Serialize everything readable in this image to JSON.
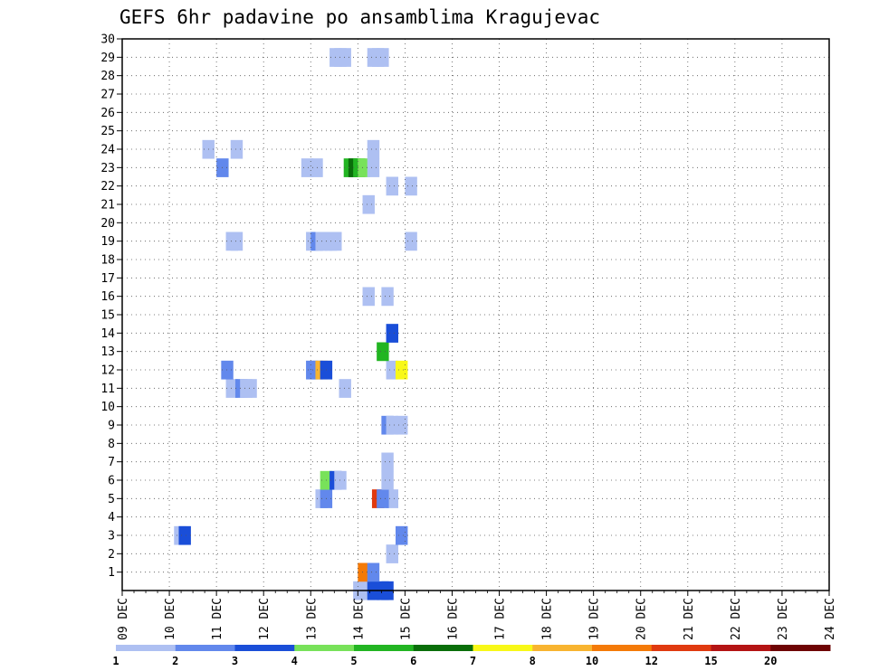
{
  "chart_data": {
    "type": "heatmap",
    "title": "GEFS 6hr padavine po ansamblima Kragujevac",
    "x_tick_labels": [
      "09 DEC",
      "10 DEC",
      "11 DEC",
      "12 DEC",
      "13 DEC",
      "14 DEC",
      "15 DEC",
      "16 DEC",
      "17 DEC",
      "18 DEC",
      "19 DEC",
      "20 DEC",
      "21 DEC",
      "22 DEC",
      "23 DEC",
      "24 DEC"
    ],
    "y_tick_labels": [
      "1",
      "2",
      "3",
      "4",
      "5",
      "6",
      "7",
      "8",
      "9",
      "10",
      "11",
      "12",
      "13",
      "14",
      "15",
      "16",
      "17",
      "18",
      "19",
      "20",
      "21",
      "22",
      "23",
      "24",
      "25",
      "26",
      "27",
      "28",
      "29",
      "30"
    ],
    "x_range_days": [
      0,
      15
    ],
    "y_range_members": [
      0,
      30
    ],
    "step_hours": 6,
    "legend_breaks": [
      "1",
      "2",
      "3",
      "4",
      "5",
      "6",
      "7",
      "8",
      "10",
      "12",
      "15",
      "20"
    ],
    "legend_colors": [
      "#aec0f2",
      "#6288ec",
      "#1a4ed8",
      "#78e25a",
      "#22b522",
      "#0a6e0a",
      "#f8f818",
      "#f8b430",
      "#f47a08",
      "#e03a10",
      "#b41414",
      "#6e0404"
    ],
    "cells": [
      [
        0,
        4.9,
        1
      ],
      [
        0,
        5.1,
        1
      ],
      [
        0,
        5.2,
        3
      ],
      [
        0,
        5.4,
        3
      ],
      [
        0,
        5.5,
        3
      ],
      [
        1,
        5.0,
        9
      ],
      [
        1,
        5.2,
        2
      ],
      [
        2,
        5.6,
        1
      ],
      [
        3,
        1.1,
        1
      ],
      [
        3,
        1.2,
        3
      ],
      [
        3,
        5.8,
        2
      ],
      [
        5,
        4.1,
        1
      ],
      [
        5,
        4.2,
        2
      ],
      [
        5,
        5.6,
        1
      ],
      [
        5,
        5.3,
        10
      ],
      [
        5,
        5.4,
        2
      ],
      [
        6,
        4.2,
        4
      ],
      [
        6,
        4.4,
        3
      ],
      [
        6,
        4.5,
        1
      ],
      [
        6,
        5.5,
        1
      ],
      [
        7,
        5.5,
        1
      ],
      [
        9,
        5.5,
        2
      ],
      [
        9,
        5.6,
        1
      ],
      [
        9,
        5.8,
        1
      ],
      [
        11,
        2.2,
        1
      ],
      [
        11,
        2.4,
        2
      ],
      [
        11,
        2.5,
        1
      ],
      [
        11,
        2.6,
        1
      ],
      [
        11,
        4.6,
        1
      ],
      [
        12,
        2.1,
        2
      ],
      [
        12,
        3.9,
        2
      ],
      [
        12,
        4.0,
        2
      ],
      [
        12,
        4.1,
        8
      ],
      [
        12,
        4.2,
        3
      ],
      [
        12,
        5.6,
        1
      ],
      [
        12,
        5.8,
        7
      ],
      [
        13,
        5.4,
        5
      ],
      [
        14,
        5.6,
        3
      ],
      [
        16,
        5.1,
        1
      ],
      [
        16,
        5.5,
        1
      ],
      [
        19,
        2.2,
        1
      ],
      [
        19,
        2.3,
        1
      ],
      [
        19,
        3.9,
        1
      ],
      [
        19,
        4.0,
        2
      ],
      [
        19,
        4.1,
        1
      ],
      [
        19,
        4.2,
        1
      ],
      [
        19,
        4.3,
        1
      ],
      [
        19,
        4.4,
        1
      ],
      [
        19,
        6.0,
        1
      ],
      [
        21,
        5.1,
        1
      ],
      [
        22,
        5.6,
        1
      ],
      [
        22,
        6.0,
        1
      ],
      [
        23,
        2.0,
        2
      ],
      [
        23,
        3.8,
        1
      ],
      [
        23,
        4.0,
        1
      ],
      [
        23,
        4.7,
        5
      ],
      [
        23,
        4.8,
        6
      ],
      [
        23,
        4.9,
        5
      ],
      [
        23,
        5.0,
        4
      ],
      [
        23,
        5.2,
        1
      ],
      [
        24,
        1.7,
        1
      ],
      [
        24,
        2.3,
        1
      ],
      [
        24,
        5.2,
        1
      ],
      [
        29,
        4.4,
        1
      ],
      [
        29,
        4.5,
        1
      ],
      [
        29,
        4.6,
        1
      ],
      [
        29,
        5.2,
        1
      ],
      [
        29,
        5.3,
        1
      ],
      [
        29,
        5.4,
        1
      ]
    ]
  }
}
